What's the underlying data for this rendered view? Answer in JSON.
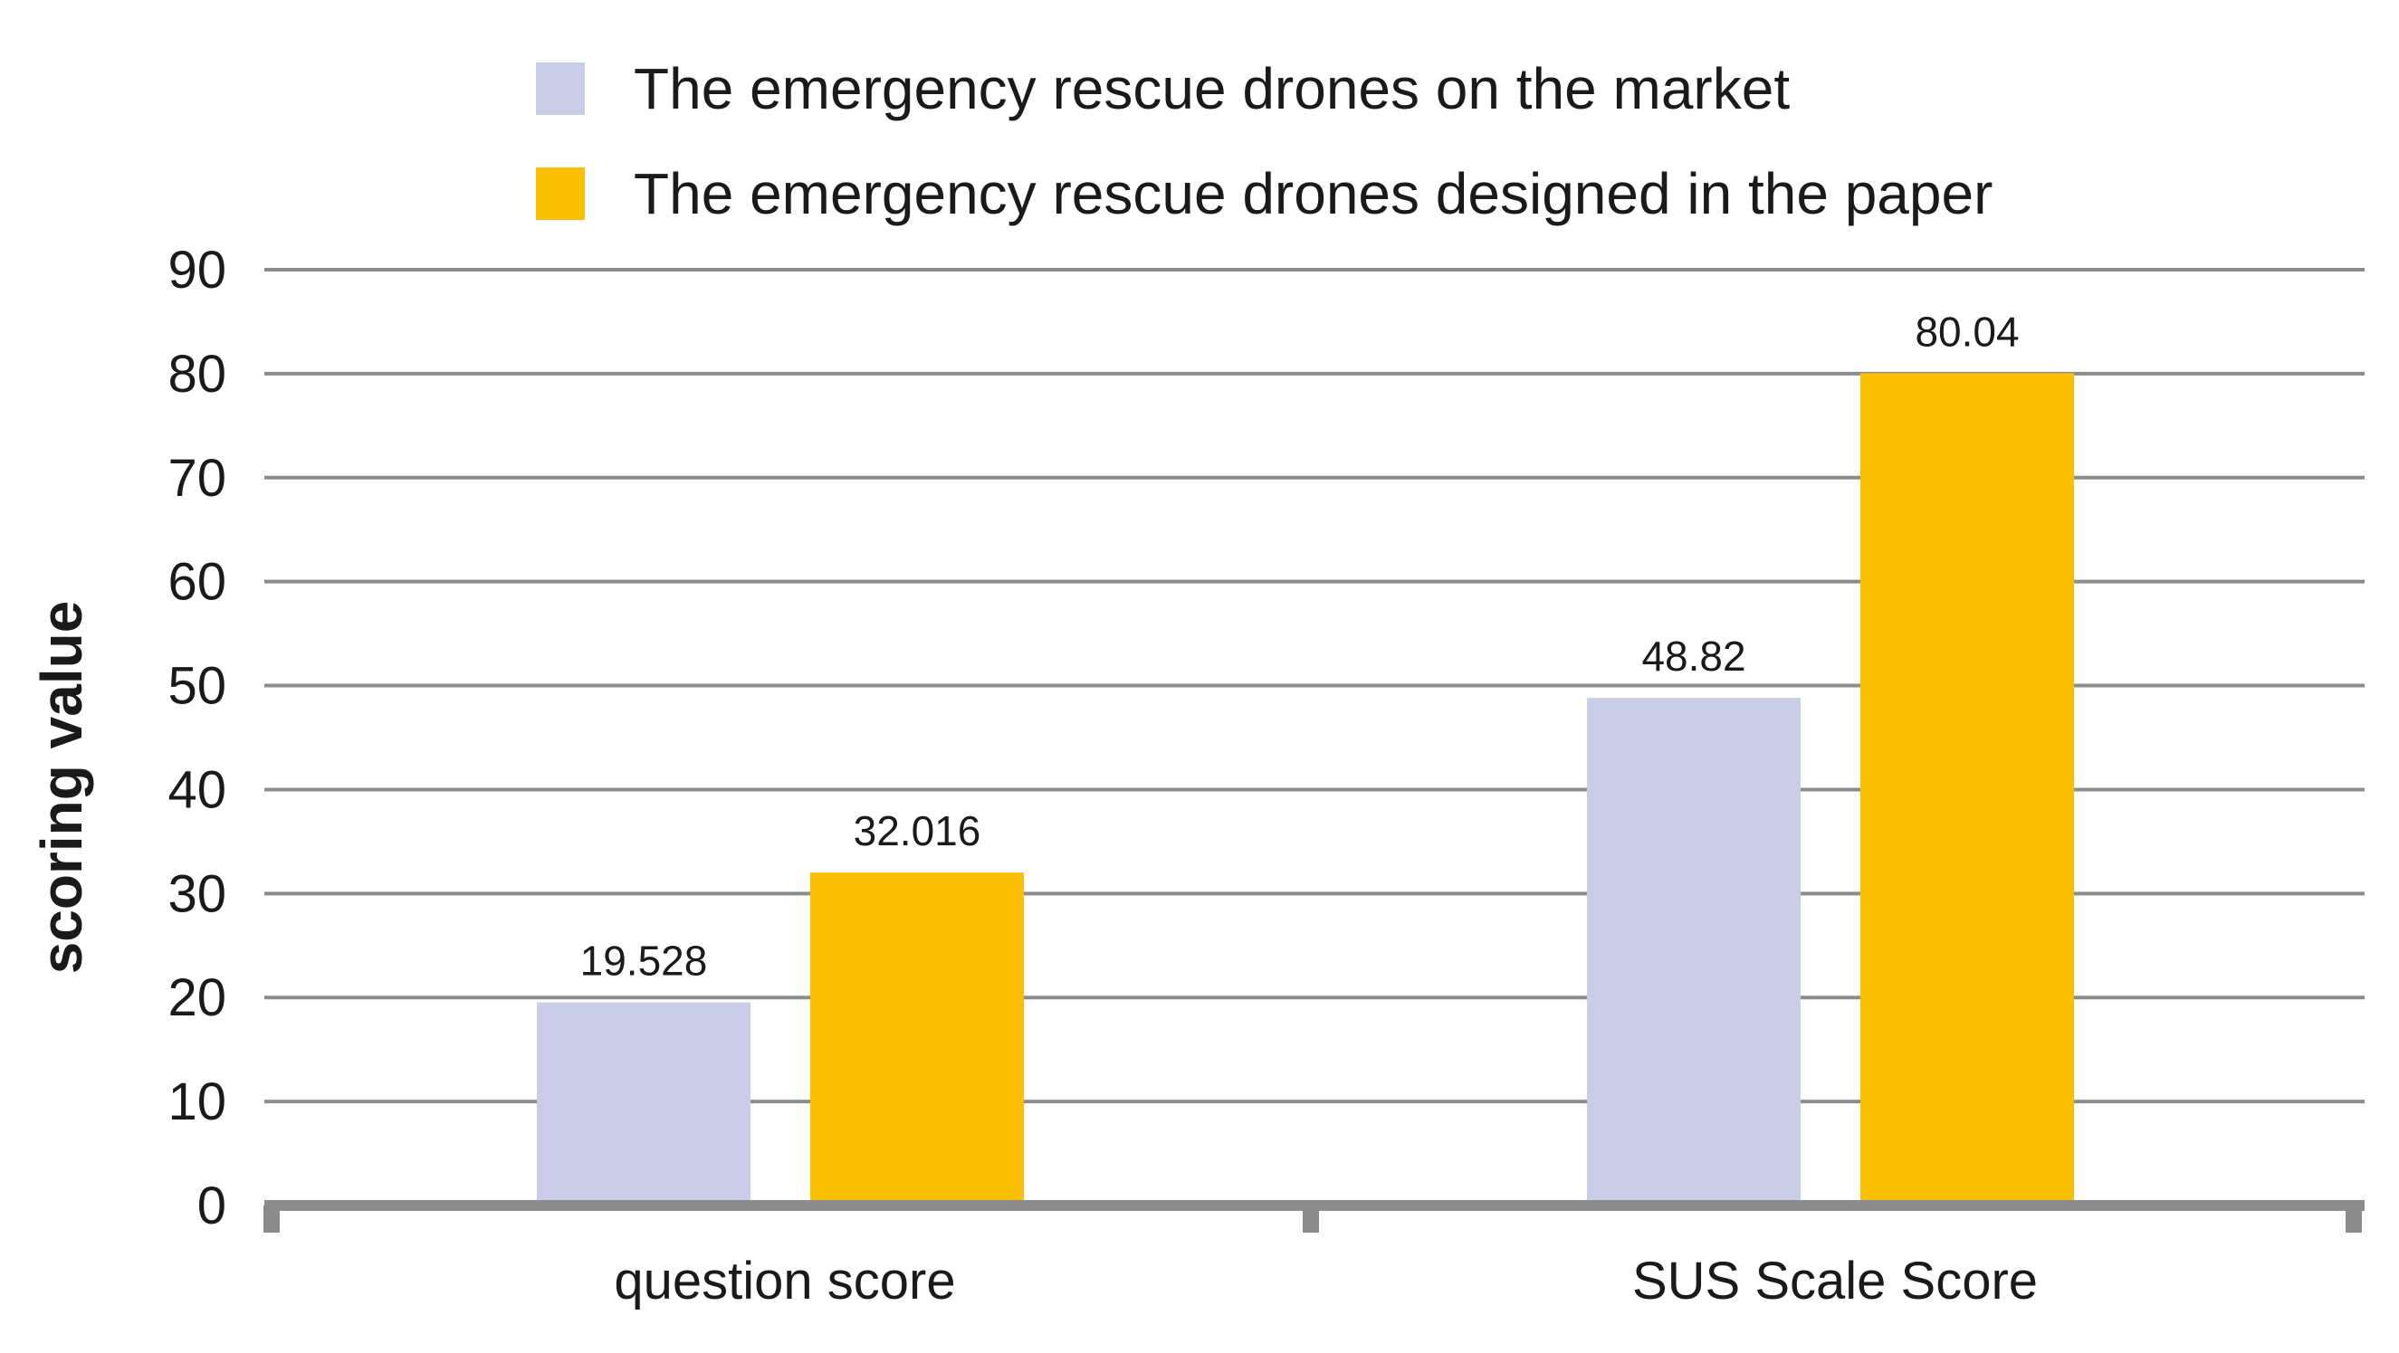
{
  "chart_data": {
    "type": "bar",
    "title": "",
    "xlabel": "",
    "ylabel": "scoring value",
    "ylim": [
      0,
      90
    ],
    "yticks": [
      0,
      10,
      20,
      30,
      40,
      50,
      60,
      70,
      80,
      90
    ],
    "grid": true,
    "legend_position": "top",
    "categories": [
      "question score",
      "SUS Scale Score"
    ],
    "series": [
      {
        "name": "The emergency rescue drones on the market",
        "color": "#cbcde8",
        "values": [
          19.528,
          48.82
        ],
        "labels": [
          "19.528",
          "48.82"
        ]
      },
      {
        "name": "The emergency rescue drones designed in the paper",
        "color": "#fbbf00",
        "values": [
          32.016,
          80.04
        ],
        "labels": [
          "32.016",
          "80.04"
        ]
      }
    ]
  },
  "colors": {
    "grid": "#8c8c8c",
    "axis": "#8c8c8c",
    "text": "#1a1a1a"
  }
}
